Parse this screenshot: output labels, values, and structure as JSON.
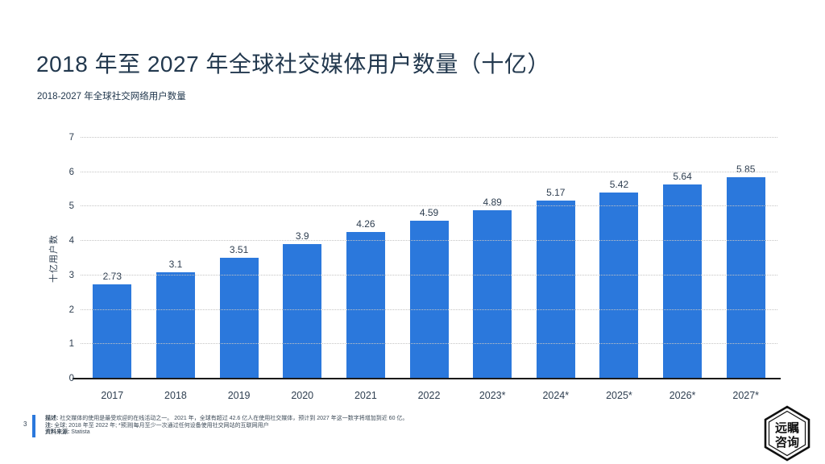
{
  "header": {
    "title": "2018 年至 2027 年全球社交媒体用户数量（十亿）",
    "subtitle": "2018-2027 年全球社交网络用户数量"
  },
  "chart_data": {
    "type": "bar",
    "title": "2018 年至 2027 年全球社交媒体用户数量（十亿）",
    "subtitle": "2018-2027 年全球社交网络用户数量",
    "categories": [
      "2017",
      "2018",
      "2019",
      "2020",
      "2021",
      "2022",
      "2023*",
      "2024*",
      "2025*",
      "2026*",
      "2027*"
    ],
    "values": [
      2.73,
      3.1,
      3.51,
      3.9,
      4.26,
      4.59,
      4.89,
      5.17,
      5.42,
      5.64,
      5.85
    ],
    "value_labels": [
      "2.73",
      "3.1",
      "3.51",
      "3.9",
      "4.26",
      "4.59",
      "4.89",
      "5.17",
      "5.42",
      "5.64",
      "5.85"
    ],
    "xlabel": "",
    "ylabel": "十亿用户数",
    "ylim": [
      0,
      7
    ],
    "yticks": [
      0,
      1,
      2,
      3,
      4,
      5,
      6,
      7
    ],
    "grid": "horizontal-dotted",
    "legend": "none",
    "bar_color": "#2b78dc"
  },
  "footer": {
    "page_number": "3",
    "description_label": "描述:",
    "description_text": "社交媒体的使用是最受欢迎的在线活动之一。 2021 年，全球有超过 42.6 亿人在使用社交媒体，预计到 2027 年这一数字将增加到近 60 亿。",
    "note_label": "注:",
    "note_text": "全球; 2018 年至 2022 年; *预测|每月至少一次通过任何设备使用社交网站的互联网用户",
    "source_label": "资料来源:",
    "source_text": "Statista"
  },
  "logo": {
    "line1": "远瞩",
    "line2": "咨询"
  },
  "colors": {
    "bar": "#2b78dc",
    "title_text": "#22384e",
    "tick_text": "#2e3e50",
    "grid": "#c4c4c4",
    "axis_line": "#1a1a1a",
    "accent": "#2b78dc",
    "footnote_text": "#3c4a57"
  }
}
